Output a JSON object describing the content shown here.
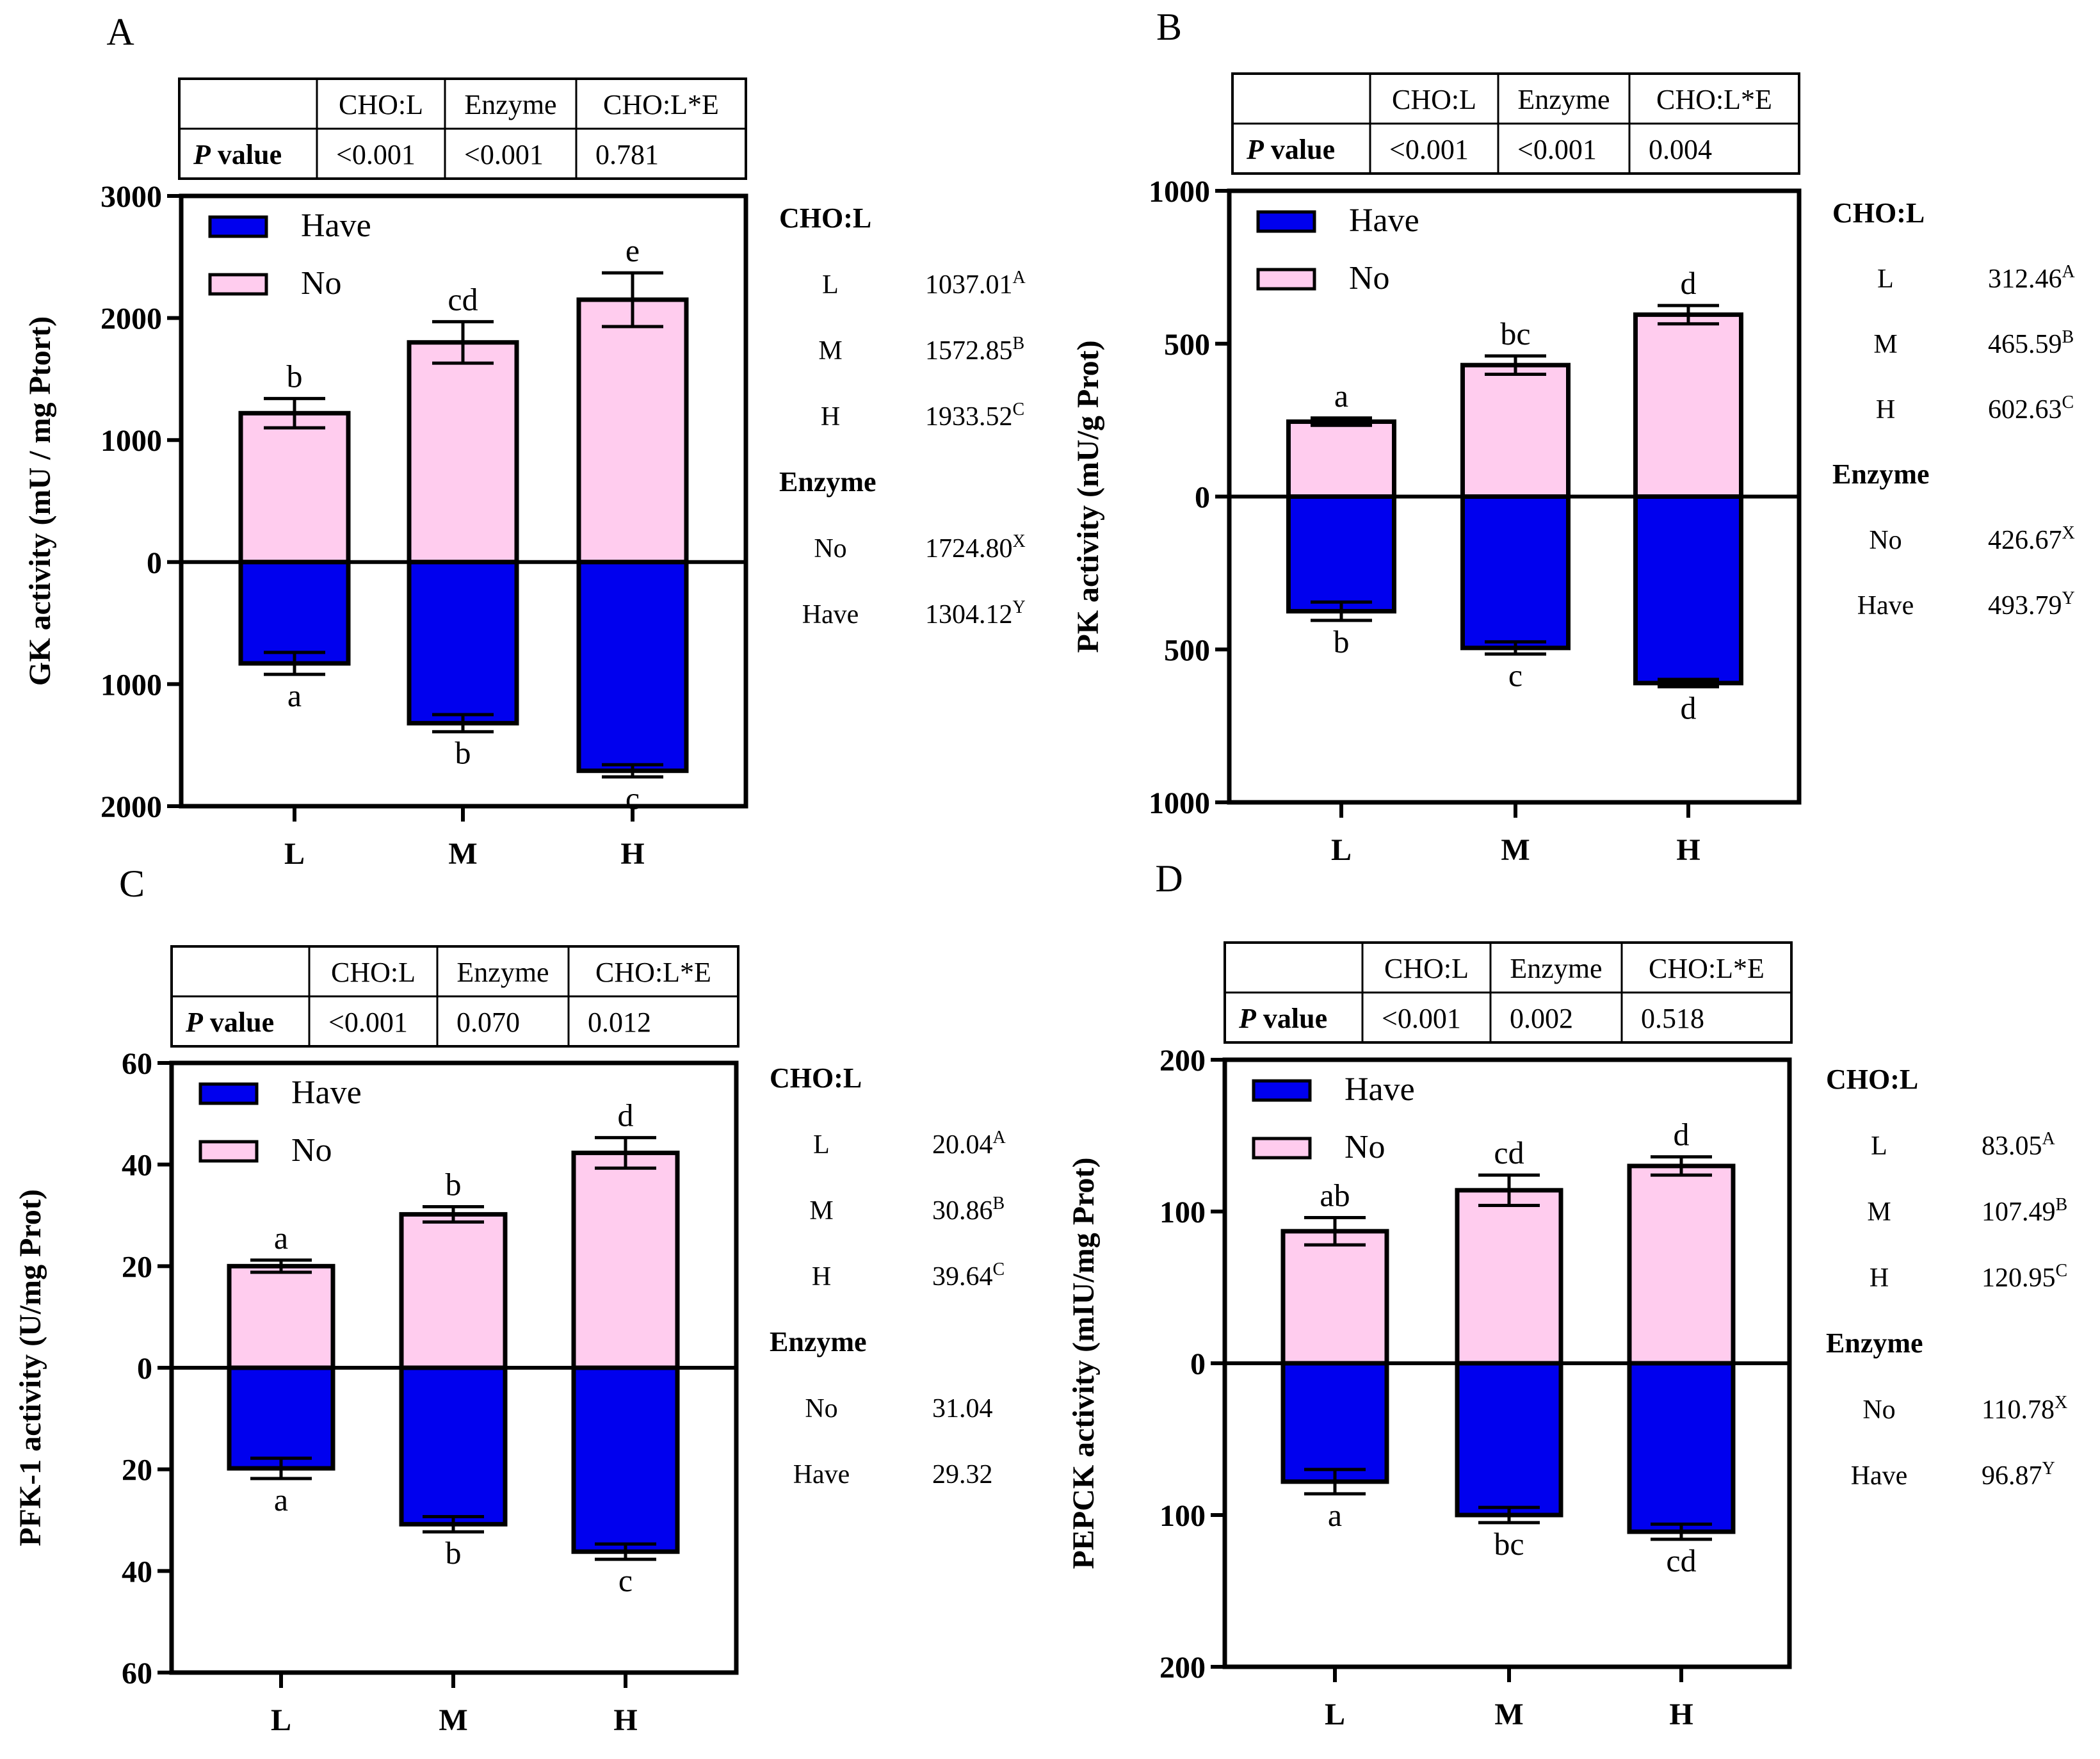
{
  "colors": {
    "have": "#0000ee",
    "no": "#ffccee",
    "axis": "#000000"
  },
  "legend": {
    "have": "Have",
    "no": "No"
  },
  "p_table": {
    "headers": [
      "CHO:L",
      "Enzyme",
      "CHO:L*E"
    ],
    "row_label_italic": "P",
    "row_label_rest": " value"
  },
  "chart_data": [
    {
      "panel": "A",
      "type": "bar",
      "ylabel": "GK activity (mU / mg Ptort)",
      "categories": [
        "L",
        "M",
        "H"
      ],
      "ylim": [
        -2000,
        3000
      ],
      "yticks": [
        3000,
        2000,
        1000,
        0,
        -1000,
        -2000
      ],
      "yticklabels": [
        "3000",
        "2000",
        "1000",
        "0",
        "1000",
        "2000"
      ],
      "series": [
        {
          "name": "No",
          "values": [
            1220,
            1800,
            2150
          ],
          "errors": [
            120,
            170,
            220
          ],
          "letters": [
            "b",
            "cd",
            "e"
          ]
        },
        {
          "name": "Have",
          "values": [
            -830,
            -1320,
            -1710
          ],
          "errors": [
            90,
            70,
            50
          ],
          "letters": [
            "a",
            "b",
            "c"
          ]
        }
      ],
      "p_values": [
        "<0.001",
        "<0.001",
        "0.781"
      ],
      "side": {
        "cho_title": "CHO:L",
        "cho": [
          {
            "label": "L",
            "value": "1037.01",
            "sup": "A"
          },
          {
            "label": "M",
            "value": "1572.85",
            "sup": "B"
          },
          {
            "label": "H",
            "value": "1933.52",
            "sup": "C"
          }
        ],
        "enzyme_title": "Enzyme",
        "enzyme": [
          {
            "label": "No",
            "value": "1724.80",
            "sup": "X"
          },
          {
            "label": "Have",
            "value": "1304.12",
            "sup": "Y"
          }
        ]
      }
    },
    {
      "panel": "B",
      "type": "bar",
      "ylabel": "PK activity (mU/g Prot)",
      "categories": [
        "L",
        "M",
        "H"
      ],
      "ylim": [
        -1000,
        1000
      ],
      "yticks": [
        1000,
        500,
        0,
        -500,
        -1000
      ],
      "yticklabels": [
        "1000",
        "500",
        "0",
        "500",
        "1000"
      ],
      "series": [
        {
          "name": "No",
          "values": [
            245,
            430,
            595
          ],
          "errors": [
            12,
            30,
            30
          ],
          "letters": [
            "a",
            "bc",
            "d"
          ]
        },
        {
          "name": "Have",
          "values": [
            -375,
            -495,
            -610
          ],
          "errors": [
            30,
            20,
            12
          ],
          "letters": [
            "b",
            "c",
            "d"
          ]
        }
      ],
      "p_values": [
        "<0.001",
        "<0.001",
        "0.004"
      ],
      "side": {
        "cho_title": "CHO:L",
        "cho": [
          {
            "label": "L",
            "value": "312.46",
            "sup": "A"
          },
          {
            "label": "M",
            "value": "465.59",
            "sup": "B"
          },
          {
            "label": "H",
            "value": "602.63",
            "sup": "C"
          }
        ],
        "enzyme_title": "Enzyme",
        "enzyme": [
          {
            "label": "No",
            "value": "426.67",
            "sup": "X"
          },
          {
            "label": "Have",
            "value": "493.79",
            "sup": "Y"
          }
        ]
      }
    },
    {
      "panel": "C",
      "type": "bar",
      "ylabel": "PFK-1 activity (U/mg Prot)",
      "categories": [
        "L",
        "M",
        "H"
      ],
      "ylim": [
        -60,
        60
      ],
      "yticks": [
        60,
        40,
        20,
        0,
        -20,
        -40,
        -60
      ],
      "yticklabels": [
        "60",
        "40",
        "20",
        "0",
        "20",
        "40",
        "60"
      ],
      "series": [
        {
          "name": "No",
          "values": [
            20,
            30.2,
            42.3
          ],
          "errors": [
            1.2,
            1.5,
            3
          ],
          "letters": [
            "a",
            "b",
            "d"
          ]
        },
        {
          "name": "Have",
          "values": [
            -19.8,
            -30.8,
            -36.2
          ],
          "errors": [
            2,
            1.5,
            1.5
          ],
          "letters": [
            "a",
            "b",
            "c"
          ]
        }
      ],
      "p_values": [
        "<0.001",
        "0.070",
        "0.012"
      ],
      "side": {
        "cho_title": "CHO:L",
        "cho": [
          {
            "label": "L",
            "value": "20.04",
            "sup": "A"
          },
          {
            "label": "M",
            "value": "30.86",
            "sup": "B"
          },
          {
            "label": "H",
            "value": "39.64",
            "sup": "C"
          }
        ],
        "enzyme_title": "Enzyme",
        "enzyme": [
          {
            "label": "No",
            "value": "31.04",
            "sup": ""
          },
          {
            "label": "Have",
            "value": "29.32",
            "sup": ""
          }
        ]
      }
    },
    {
      "panel": "D",
      "type": "bar",
      "ylabel": "PEPCK activity (mIU/mg Prot)",
      "categories": [
        "L",
        "M",
        "H"
      ],
      "ylim": [
        -200,
        200
      ],
      "yticks": [
        200,
        100,
        0,
        -100,
        -200
      ],
      "yticklabels": [
        "200",
        "100",
        "0",
        "100",
        "200"
      ],
      "series": [
        {
          "name": "No",
          "values": [
            87,
            114,
            130
          ],
          "errors": [
            9,
            10,
            6
          ],
          "letters": [
            "ab",
            "cd",
            "d"
          ]
        },
        {
          "name": "Have",
          "values": [
            -78,
            -100,
            -111
          ],
          "errors": [
            8,
            5,
            5
          ],
          "letters": [
            "a",
            "bc",
            "cd"
          ]
        }
      ],
      "p_values": [
        "<0.001",
        "0.002",
        "0.518"
      ],
      "side": {
        "cho_title": "CHO:L",
        "cho": [
          {
            "label": "L",
            "value": "83.05",
            "sup": "A"
          },
          {
            "label": "M",
            "value": "107.49",
            "sup": "B"
          },
          {
            "label": "H",
            "value": "120.95",
            "sup": "C"
          }
        ],
        "enzyme_title": "Enzyme",
        "enzyme": [
          {
            "label": "No",
            "value": "110.78",
            "sup": "X"
          },
          {
            "label": "Have",
            "value": "96.87",
            "sup": "Y"
          }
        ]
      }
    }
  ]
}
